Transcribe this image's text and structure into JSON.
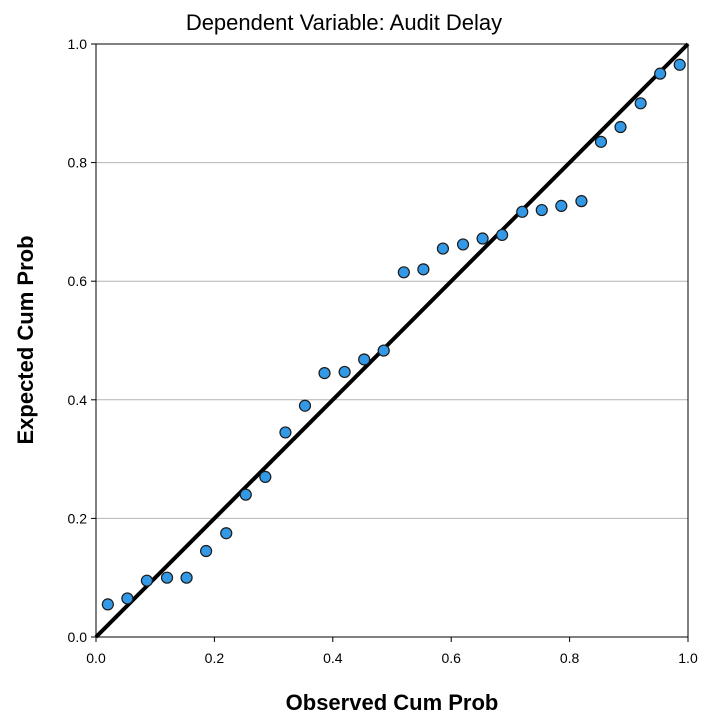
{
  "chart_data": {
    "type": "scatter",
    "title": "Dependent Variable: Audit Delay",
    "xlabel": "Observed Cum Prob",
    "ylabel": "Expected Cum Prob",
    "xlim": [
      0.0,
      1.0
    ],
    "ylim": [
      0.0,
      1.0
    ],
    "x_ticks": [
      "0.0",
      "0.2",
      "0.4",
      "0.6",
      "0.8",
      "1.0"
    ],
    "y_ticks": [
      "0.0",
      "0.2",
      "0.4",
      "0.6",
      "0.8",
      "1.0"
    ],
    "grid": "horizontal",
    "reference_line": {
      "from": [
        0,
        0
      ],
      "to": [
        1,
        1
      ]
    },
    "marker_color": "#3399e6",
    "points": [
      {
        "x": 0.02,
        "y": 0.055
      },
      {
        "x": 0.053,
        "y": 0.065
      },
      {
        "x": 0.086,
        "y": 0.095
      },
      {
        "x": 0.12,
        "y": 0.1
      },
      {
        "x": 0.153,
        "y": 0.1
      },
      {
        "x": 0.186,
        "y": 0.145
      },
      {
        "x": 0.22,
        "y": 0.175
      },
      {
        "x": 0.253,
        "y": 0.24
      },
      {
        "x": 0.286,
        "y": 0.27
      },
      {
        "x": 0.32,
        "y": 0.345
      },
      {
        "x": 0.353,
        "y": 0.39
      },
      {
        "x": 0.386,
        "y": 0.445
      },
      {
        "x": 0.42,
        "y": 0.447
      },
      {
        "x": 0.453,
        "y": 0.468
      },
      {
        "x": 0.486,
        "y": 0.483
      },
      {
        "x": 0.52,
        "y": 0.615
      },
      {
        "x": 0.553,
        "y": 0.62
      },
      {
        "x": 0.586,
        "y": 0.655
      },
      {
        "x": 0.62,
        "y": 0.662
      },
      {
        "x": 0.653,
        "y": 0.672
      },
      {
        "x": 0.686,
        "y": 0.678
      },
      {
        "x": 0.72,
        "y": 0.717
      },
      {
        "x": 0.753,
        "y": 0.72
      },
      {
        "x": 0.786,
        "y": 0.727
      },
      {
        "x": 0.82,
        "y": 0.735
      },
      {
        "x": 0.853,
        "y": 0.835
      },
      {
        "x": 0.886,
        "y": 0.86
      },
      {
        "x": 0.92,
        "y": 0.9
      },
      {
        "x": 0.953,
        "y": 0.95
      },
      {
        "x": 0.986,
        "y": 0.965
      }
    ]
  }
}
